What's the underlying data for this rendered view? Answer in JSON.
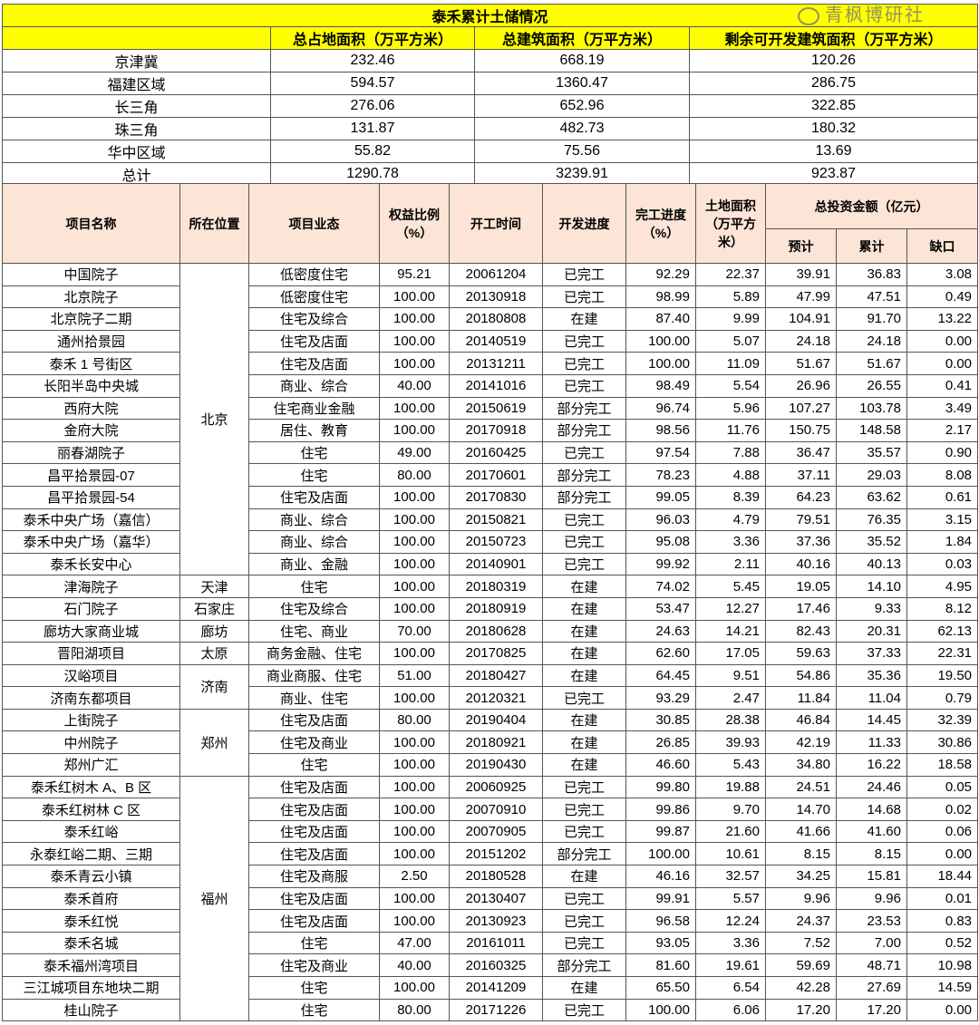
{
  "summary": {
    "title": "泰禾累计土储情况",
    "headers": [
      "",
      "总占地面积（万平方米）",
      "总建筑面积（万平方米）",
      "剩余可开发建筑面积（万平方米）"
    ],
    "rows": [
      [
        "京津冀",
        "232.46",
        "668.19",
        "120.26"
      ],
      [
        "福建区域",
        "594.57",
        "1360.47",
        "286.75"
      ],
      [
        "长三角",
        "276.06",
        "652.96",
        "322.85"
      ],
      [
        "珠三角",
        "131.87",
        "482.73",
        "180.32"
      ],
      [
        "华中区域",
        "55.82",
        "75.56",
        "13.69"
      ],
      [
        "总计",
        "1290.78",
        "3239.91",
        "923.87"
      ]
    ]
  },
  "projects": {
    "headers": {
      "name": "项目名称",
      "location": "所在位置",
      "type": "项目业态",
      "equity": "权益比例（%）",
      "start": "开工时间",
      "status": "开发进度",
      "completion": "完工进度（%）",
      "land": "土地面积（万平方米）",
      "investment": "总投资金额（亿元）",
      "planned": "预计",
      "cumulative": "累计",
      "gap": "缺口"
    },
    "locations": [
      [
        "北京",
        14
      ],
      [
        "天津",
        1
      ],
      [
        "石家庄",
        1
      ],
      [
        "廊坊",
        1
      ],
      [
        "太原",
        1
      ],
      [
        "济南",
        2
      ],
      [
        "郑州",
        3
      ],
      [
        "福州",
        11
      ]
    ],
    "rows": [
      [
        "中国院子",
        "低密度住宅",
        "95.21",
        "20061204",
        "已完工",
        "92.29",
        "22.37",
        "39.91",
        "36.83",
        "3.08"
      ],
      [
        "北京院子",
        "低密度住宅",
        "100.00",
        "20130918",
        "已完工",
        "98.99",
        "5.89",
        "47.99",
        "47.51",
        "0.49"
      ],
      [
        "北京院子二期",
        "住宅及综合",
        "100.00",
        "20180808",
        "在建",
        "87.40",
        "9.99",
        "104.91",
        "91.70",
        "13.22"
      ],
      [
        "通州拾景园",
        "住宅及店面",
        "100.00",
        "20140519",
        "已完工",
        "100.00",
        "5.07",
        "24.18",
        "24.18",
        "0.00"
      ],
      [
        "泰禾 1 号街区",
        "住宅及店面",
        "100.00",
        "20131211",
        "已完工",
        "100.00",
        "11.09",
        "51.67",
        "51.67",
        "0.00"
      ],
      [
        "长阳半岛中央城",
        "商业、综合",
        "40.00",
        "20141016",
        "已完工",
        "98.49",
        "5.54",
        "26.96",
        "26.55",
        "0.41"
      ],
      [
        "西府大院",
        "住宅商业金融",
        "100.00",
        "20150619",
        "部分完工",
        "96.74",
        "5.96",
        "107.27",
        "103.78",
        "3.49"
      ],
      [
        "金府大院",
        "居住、教育",
        "100.00",
        "20170918",
        "部分完工",
        "98.56",
        "11.76",
        "150.75",
        "148.58",
        "2.17"
      ],
      [
        "丽春湖院子",
        "住宅",
        "49.00",
        "20160425",
        "已完工",
        "97.54",
        "7.88",
        "36.47",
        "35.57",
        "0.90"
      ],
      [
        "昌平拾景园-07",
        "住宅",
        "80.00",
        "20170601",
        "部分完工",
        "78.23",
        "4.88",
        "37.11",
        "29.03",
        "8.08"
      ],
      [
        "昌平拾景园-54",
        "住宅及店面",
        "100.00",
        "20170830",
        "部分完工",
        "99.05",
        "8.39",
        "64.23",
        "63.62",
        "0.61"
      ],
      [
        "泰禾中央广场（嘉信）",
        "商业、综合",
        "100.00",
        "20150821",
        "已完工",
        "96.03",
        "4.79",
        "79.51",
        "76.35",
        "3.15"
      ],
      [
        "泰禾中央广场（嘉华）",
        "商业、综合",
        "100.00",
        "20150723",
        "已完工",
        "95.08",
        "3.36",
        "37.36",
        "35.52",
        "1.84"
      ],
      [
        "泰禾长安中心",
        "商业、金融",
        "100.00",
        "20140901",
        "已完工",
        "99.92",
        "2.11",
        "40.16",
        "40.13",
        "0.03"
      ],
      [
        "津海院子",
        "住宅",
        "100.00",
        "20180319",
        "在建",
        "74.02",
        "5.45",
        "19.05",
        "14.10",
        "4.95"
      ],
      [
        "石门院子",
        "住宅及综合",
        "100.00",
        "20180919",
        "在建",
        "53.47",
        "12.27",
        "17.46",
        "9.33",
        "8.12"
      ],
      [
        "廊坊大家商业城",
        "住宅、商业",
        "70.00",
        "20180628",
        "在建",
        "24.63",
        "14.21",
        "82.43",
        "20.31",
        "62.13"
      ],
      [
        "晋阳湖项目",
        "商务金融、住宅",
        "100.00",
        "20170825",
        "在建",
        "62.60",
        "17.05",
        "59.63",
        "37.33",
        "22.31"
      ],
      [
        "汉峪项目",
        "商业商服、住宅",
        "51.00",
        "20180427",
        "在建",
        "64.45",
        "9.51",
        "54.86",
        "35.36",
        "19.50"
      ],
      [
        "济南东都项目",
        "商业、住宅",
        "100.00",
        "20120321",
        "已完工",
        "93.29",
        "2.47",
        "11.84",
        "11.04",
        "0.79"
      ],
      [
        "上街院子",
        "住宅及店面",
        "80.00",
        "20190404",
        "在建",
        "30.85",
        "28.38",
        "46.84",
        "14.45",
        "32.39"
      ],
      [
        "中州院子",
        "住宅及商业",
        "100.00",
        "20180921",
        "在建",
        "26.85",
        "39.93",
        "42.19",
        "11.33",
        "30.86"
      ],
      [
        "郑州广汇",
        "住宅",
        "100.00",
        "20190430",
        "在建",
        "46.60",
        "5.43",
        "34.80",
        "16.22",
        "18.58"
      ],
      [
        "泰禾红树木 A、B 区",
        "住宅及店面",
        "100.00",
        "20060925",
        "已完工",
        "99.80",
        "19.88",
        "24.51",
        "24.46",
        "0.05"
      ],
      [
        "泰禾红树林 C 区",
        "住宅及店面",
        "100.00",
        "20070910",
        "已完工",
        "99.86",
        "9.70",
        "14.70",
        "14.68",
        "0.02"
      ],
      [
        "泰禾红峪",
        "住宅及店面",
        "100.00",
        "20070905",
        "已完工",
        "99.87",
        "21.60",
        "41.66",
        "41.60",
        "0.06"
      ],
      [
        "永泰红峪二期、三期",
        "住宅及店面",
        "100.00",
        "20151202",
        "部分完工",
        "100.00",
        "10.61",
        "8.15",
        "8.15",
        "0.00"
      ],
      [
        "泰禾青云小镇",
        "住宅及商服",
        "2.50",
        "20180528",
        "在建",
        "46.16",
        "32.57",
        "34.25",
        "15.81",
        "18.44"
      ],
      [
        "泰禾首府",
        "住宅及店面",
        "100.00",
        "20130407",
        "已完工",
        "99.91",
        "5.57",
        "9.96",
        "9.96",
        "0.01"
      ],
      [
        "泰禾红悦",
        "住宅及店面",
        "100.00",
        "20130923",
        "已完工",
        "96.58",
        "12.24",
        "24.37",
        "23.53",
        "0.83"
      ],
      [
        "泰禾名城",
        "住宅",
        "47.00",
        "20161011",
        "已完工",
        "93.05",
        "3.36",
        "7.52",
        "7.00",
        "0.52"
      ],
      [
        "泰禾福州湾项目",
        "住宅及商业",
        "40.00",
        "20160325",
        "部分完工",
        "81.60",
        "19.61",
        "59.69",
        "48.71",
        "10.98"
      ],
      [
        "三江城项目东地块二期",
        "住宅",
        "100.00",
        "20141209",
        "在建",
        "65.50",
        "6.54",
        "42.28",
        "27.69",
        "14.59"
      ],
      [
        "桂山院子",
        "住宅",
        "80.00",
        "20171226",
        "已完工",
        "100.00",
        "6.06",
        "17.20",
        "17.20",
        "0.00"
      ]
    ]
  },
  "watermark": "青枫博研社"
}
